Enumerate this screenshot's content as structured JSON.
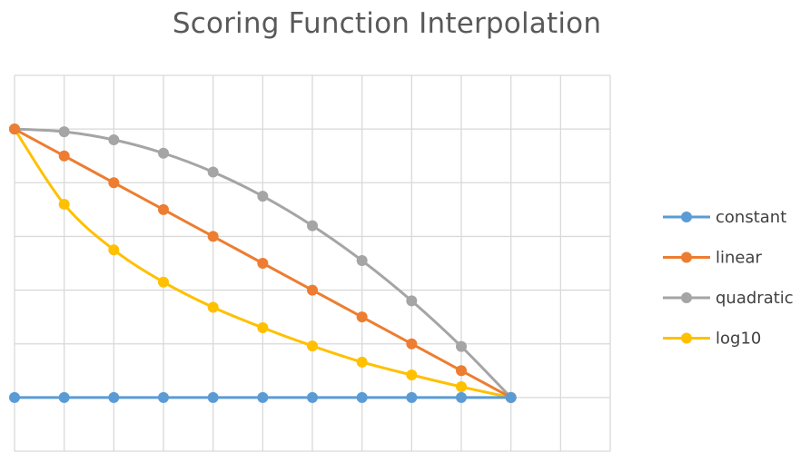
{
  "chart_data": {
    "type": "line",
    "title": "Scoring Function Interpolation",
    "xlabel": "",
    "ylabel": "",
    "x": [
      0,
      1,
      2,
      3,
      4,
      5,
      6,
      7,
      8,
      9,
      10
    ],
    "xlim": [
      0,
      12
    ],
    "ylim": [
      -1,
      6
    ],
    "grid": true,
    "legend_position": "right",
    "series": [
      {
        "name": "constant",
        "color": "#5b9bd5",
        "values": [
          0,
          0,
          0,
          0,
          0,
          0,
          0,
          0,
          0,
          0,
          0
        ]
      },
      {
        "name": "linear",
        "color": "#ed7d31",
        "values": [
          5,
          4.5,
          4,
          3.5,
          3,
          2.5,
          2,
          1.5,
          1,
          0.5,
          0
        ]
      },
      {
        "name": "quadratic",
        "color": "#a5a5a5",
        "values": [
          5,
          4.95,
          4.8,
          4.55,
          4.2,
          3.75,
          3.2,
          2.55,
          1.8,
          0.95,
          0
        ]
      },
      {
        "name": "log10",
        "color": "#ffc000",
        "values": [
          5,
          3.6,
          2.75,
          2.15,
          1.68,
          1.3,
          0.96,
          0.66,
          0.42,
          0.2,
          0
        ]
      }
    ]
  }
}
